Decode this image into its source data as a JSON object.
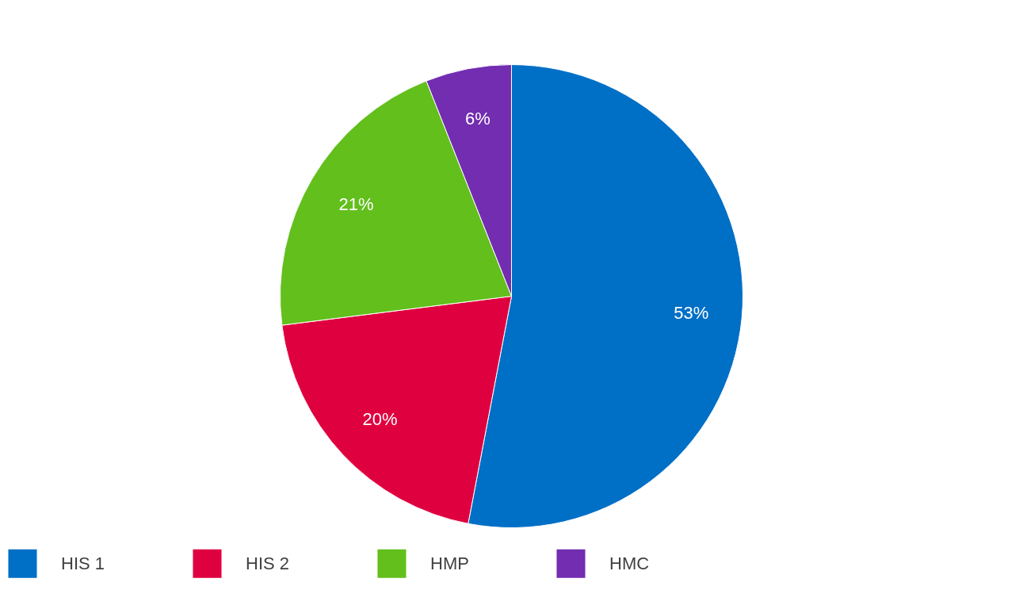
{
  "chart_data": {
    "type": "pie",
    "categories": [
      "HIS 1",
      "HIS 2",
      "HMP",
      "HMC"
    ],
    "values": [
      53,
      20,
      21,
      6
    ],
    "colors": [
      "#006fc6",
      "#df0040",
      "#62bf1c",
      "#722db0"
    ],
    "value_labels": [
      "53%",
      "20%",
      "21%",
      "6%"
    ],
    "legend": "bottom"
  }
}
